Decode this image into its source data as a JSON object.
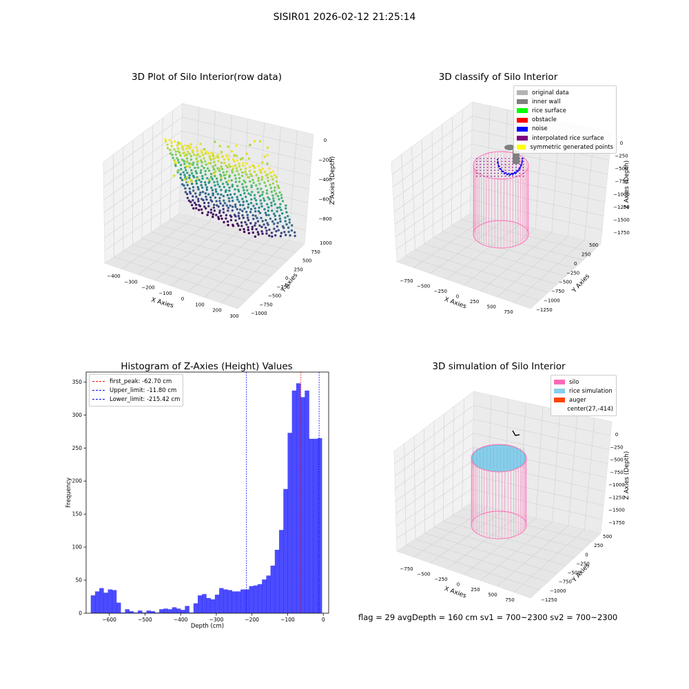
{
  "suptitle": "SISIR01 2026-02-12 21:25:14",
  "panels": {
    "raw": {
      "title": "3D Plot of Silo Interior(row data)",
      "xlabel": "X Axies",
      "ylabel": "Y Axies",
      "zlabel": "Z Axies (Depth)",
      "xticks": [
        "−400",
        "−300",
        "−200",
        "−100",
        "0",
        "100",
        "200",
        "300"
      ],
      "yticks": [
        "1000",
        "750",
        "500",
        "250",
        "0",
        "−250",
        "−500",
        "−750",
        "−1000"
      ],
      "zticks": [
        "0",
        "−200",
        "−400",
        "−600",
        "−800"
      ]
    },
    "classify": {
      "title": "3D classify of Silo Interior",
      "xlabel": "X Axies",
      "ylabel": "Y Axies",
      "zlabel": "Z Axies (Depth)",
      "xticks": [
        "−750",
        "−500",
        "−250",
        "0",
        "250",
        "500",
        "750"
      ],
      "yticks": [
        "500",
        "250",
        "0",
        "−250",
        "−500",
        "−750",
        "−1000",
        "−1250"
      ],
      "zticks": [
        "0",
        "−250",
        "−500",
        "−750",
        "−1000",
        "−1250",
        "−1500",
        "−1750"
      ],
      "legend": [
        {
          "label": "original data",
          "color": "#b3b3b3"
        },
        {
          "label": "inner wall",
          "color": "#808080"
        },
        {
          "label": "rice surface",
          "color": "#00ff00"
        },
        {
          "label": "obstacle",
          "color": "#ff0000"
        },
        {
          "label": "noise",
          "color": "#0000ff"
        },
        {
          "label": "interpolated rice surface",
          "color": "#800080"
        },
        {
          "label": "symmetric generated points",
          "color": "#ffff00"
        }
      ]
    },
    "simulation": {
      "title": "3D simulation of Silo Interior",
      "xlabel": "X Axies",
      "ylabel": "Y Axies",
      "zlabel": "Z Axies (Depth)",
      "xticks": [
        "−750",
        "−500",
        "−250",
        "0",
        "250",
        "500",
        "750"
      ],
      "yticks": [
        "500",
        "250",
        "0",
        "−250",
        "−500",
        "−750",
        "−1000",
        "−1250"
      ],
      "zticks": [
        "0",
        "−250",
        "−500",
        "−750",
        "−1000",
        "−1250",
        "−1500",
        "−1750"
      ],
      "legend": [
        {
          "label": "silo",
          "color": "#ff69b4"
        },
        {
          "label": "rice simulation",
          "color": "#87ceeb"
        },
        {
          "label": "auger",
          "color": "#ff4500"
        },
        {
          "label": "center(27,-414)",
          "color": ""
        }
      ]
    }
  },
  "footer": "flag = 29  avgDepth = 160 cm  sv1 = 700~2300  sv2 = 700~2300",
  "chart_data": {
    "type": "bar",
    "title": "Histogram of Z-Axies (Height) Values",
    "xlabel": "Depth (cm)",
    "ylabel": "Frequency",
    "xlim": [
      -665,
      15
    ],
    "ylim": [
      0,
      365
    ],
    "xticks": [
      -600,
      -500,
      -400,
      -300,
      -200,
      -100,
      0
    ],
    "yticks": [
      0,
      50,
      100,
      150,
      200,
      250,
      300,
      350
    ],
    "bar_color": "#0000ff",
    "bin_edges": [
      -652,
      -640,
      -628,
      -616,
      -604,
      -592,
      -580,
      -568,
      -556,
      -544,
      -532,
      -520,
      -508,
      -496,
      -484,
      -472,
      -460,
      -448,
      -436,
      -424,
      -412,
      -400,
      -388,
      -376,
      -364,
      -352,
      -340,
      -328,
      -316,
      -304,
      -292,
      -280,
      -268,
      -256,
      -244,
      -232,
      -220,
      -208,
      -196,
      -184,
      -172,
      -160,
      -148,
      -136,
      -124,
      -112,
      -100,
      -88,
      -76,
      -64,
      -52,
      -40,
      -28,
      -16,
      -4
    ],
    "values": [
      27,
      33,
      38,
      31,
      36,
      35,
      16,
      1,
      6,
      3,
      1,
      4,
      1,
      4,
      3,
      1,
      6,
      7,
      6,
      9,
      7,
      5,
      11,
      1,
      15,
      27,
      29,
      23,
      21,
      28,
      38,
      36,
      35,
      33,
      33,
      36,
      36,
      41,
      42,
      44,
      51,
      57,
      72,
      96,
      126,
      188,
      273,
      337,
      348,
      327,
      337,
      264,
      264,
      265
    ],
    "vlines": [
      {
        "label": "first_peak: -62.70 cm",
        "x": -62.7,
        "color": "#ff0000"
      },
      {
        "label": "Upper_limit: -11.80 cm",
        "x": -11.8,
        "color": "#0000ff"
      },
      {
        "label": "Lower_limit: -215.42 cm",
        "x": -215.42,
        "color": "#0000ff"
      }
    ]
  }
}
